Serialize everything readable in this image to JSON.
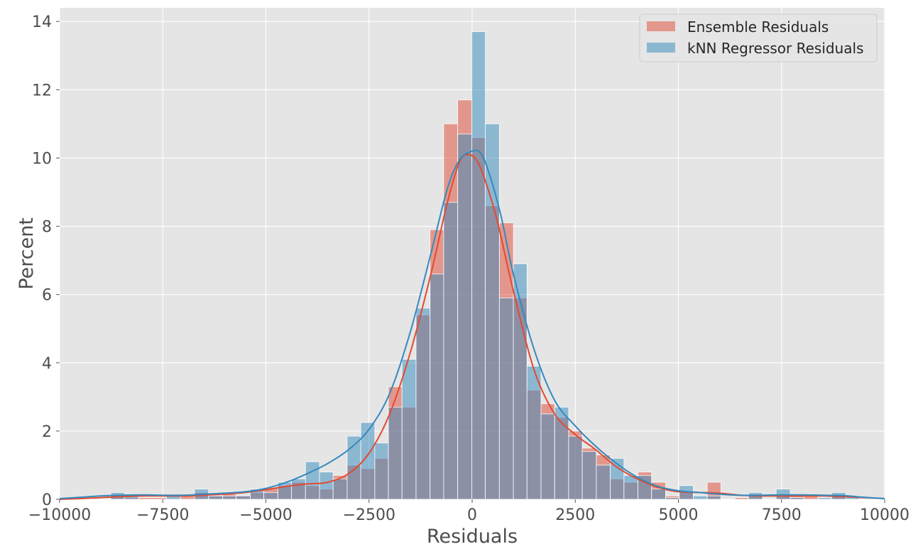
{
  "chart_data": {
    "type": "histogram",
    "xlabel": "Residuals",
    "ylabel": "Percent",
    "xlim": [
      -10000,
      10000
    ],
    "ylim": [
      0,
      14.4
    ],
    "xticks": [
      -10000,
      -7500,
      -5000,
      -2500,
      0,
      2500,
      5000,
      7500,
      10000
    ],
    "xtick_labels": [
      "−10000",
      "−7500",
      "−5000",
      "−2500",
      "0",
      "2500",
      "5000",
      "7500",
      "10000"
    ],
    "yticks": [
      0,
      2,
      4,
      6,
      8,
      10,
      12,
      14
    ],
    "ytick_labels": [
      "0",
      "2",
      "4",
      "6",
      "8",
      "10",
      "12",
      "14"
    ],
    "grid": true,
    "legend_position": "top-right",
    "style": {
      "background": "#e5e5e5",
      "grid_color": "#ffffff",
      "series_colors": [
        "#e24a33",
        "#348abd"
      ]
    },
    "series": [
      {
        "name": "Ensemble Residuals",
        "color": "#e24a33",
        "bins": [
          [
            -8760,
            -8430,
            0.1
          ],
          [
            -8430,
            -7410,
            0.05
          ],
          [
            -7070,
            -6730,
            0.1
          ],
          [
            -6730,
            -6390,
            0.2
          ],
          [
            -6390,
            -6050,
            0.1
          ],
          [
            -6050,
            -5720,
            0.15
          ],
          [
            -5720,
            -5380,
            0.1
          ],
          [
            -5380,
            -5050,
            0.2
          ],
          [
            -5050,
            -4710,
            0.35
          ],
          [
            -4710,
            -4380,
            0.4
          ],
          [
            -4380,
            -4040,
            0.5
          ],
          [
            -4040,
            -3700,
            0.4
          ],
          [
            -3700,
            -3370,
            0.3
          ],
          [
            -3370,
            -3030,
            0.7
          ],
          [
            -3030,
            -2700,
            1.0
          ],
          [
            -2700,
            -2360,
            0.9
          ],
          [
            -2360,
            -2030,
            1.2
          ],
          [
            -2030,
            -1700,
            3.3
          ],
          [
            -1700,
            -1360,
            2.7
          ],
          [
            -1360,
            -1020,
            5.4
          ],
          [
            -1020,
            -690,
            7.9
          ],
          [
            -690,
            -350,
            11.0
          ],
          [
            -350,
            -10,
            11.7
          ],
          [
            -10,
            320,
            10.6
          ],
          [
            320,
            660,
            8.6
          ],
          [
            660,
            1000,
            8.1
          ],
          [
            1000,
            1330,
            5.9
          ],
          [
            1330,
            1670,
            3.2
          ],
          [
            1670,
            2000,
            2.8
          ],
          [
            2000,
            2340,
            2.4
          ],
          [
            2340,
            2670,
            2.0
          ],
          [
            2670,
            3010,
            1.5
          ],
          [
            3010,
            3350,
            1.3
          ],
          [
            3350,
            3680,
            0.6
          ],
          [
            3680,
            4020,
            0.5
          ],
          [
            4020,
            4350,
            0.8
          ],
          [
            4350,
            4690,
            0.5
          ],
          [
            4690,
            5020,
            0.1
          ],
          [
            5020,
            5360,
            0.2
          ],
          [
            5700,
            6030,
            0.5
          ],
          [
            6370,
            6700,
            0.05
          ],
          [
            6700,
            7040,
            0.15
          ],
          [
            7370,
            7710,
            0.1
          ],
          [
            7710,
            8050,
            0.1
          ],
          [
            8050,
            8380,
            0.1
          ],
          [
            8720,
            9060,
            0.1
          ]
        ],
        "kde": [
          [
            -10000,
            0.0
          ],
          [
            -9500,
            0.02
          ],
          [
            -9000,
            0.05
          ],
          [
            -8500,
            0.08
          ],
          [
            -8000,
            0.1
          ],
          [
            -7500,
            0.1
          ],
          [
            -7000,
            0.1
          ],
          [
            -6500,
            0.12
          ],
          [
            -6000,
            0.15
          ],
          [
            -5500,
            0.2
          ],
          [
            -5000,
            0.28
          ],
          [
            -4500,
            0.38
          ],
          [
            -4000,
            0.45
          ],
          [
            -3500,
            0.5
          ],
          [
            -3000,
            0.75
          ],
          [
            -2500,
            1.35
          ],
          [
            -2000,
            2.5
          ],
          [
            -1500,
            4.3
          ],
          [
            -1000,
            6.6
          ],
          [
            -600,
            8.7
          ],
          [
            -300,
            9.9
          ],
          [
            -100,
            10.1
          ],
          [
            100,
            9.95
          ],
          [
            300,
            9.4
          ],
          [
            600,
            8.2
          ],
          [
            1000,
            6.1
          ],
          [
            1500,
            3.8
          ],
          [
            2000,
            2.5
          ],
          [
            2500,
            1.9
          ],
          [
            3000,
            1.45
          ],
          [
            3500,
            0.95
          ],
          [
            4000,
            0.6
          ],
          [
            4500,
            0.35
          ],
          [
            5000,
            0.22
          ],
          [
            5500,
            0.2
          ],
          [
            6000,
            0.18
          ],
          [
            6500,
            0.12
          ],
          [
            7000,
            0.1
          ],
          [
            7500,
            0.1
          ],
          [
            8000,
            0.1
          ],
          [
            8500,
            0.1
          ],
          [
            9000,
            0.08
          ],
          [
            9500,
            0.05
          ],
          [
            10000,
            0.02
          ]
        ]
      },
      {
        "name": "kNN Regressor Residuals",
        "color": "#348abd",
        "bins": [
          [
            -8760,
            -8430,
            0.2
          ],
          [
            -8430,
            -8090,
            0.1
          ],
          [
            -7410,
            -7070,
            0.1
          ],
          [
            -6730,
            -6390,
            0.3
          ],
          [
            -6390,
            -6050,
            0.1
          ],
          [
            -6050,
            -5720,
            0.1
          ],
          [
            -5720,
            -5380,
            0.1
          ],
          [
            -5380,
            -5050,
            0.3
          ],
          [
            -5050,
            -4710,
            0.2
          ],
          [
            -4710,
            -4380,
            0.5
          ],
          [
            -4380,
            -4040,
            0.6
          ],
          [
            -4040,
            -3700,
            1.1
          ],
          [
            -3700,
            -3370,
            0.8
          ],
          [
            -3370,
            -3030,
            0.6
          ],
          [
            -3030,
            -2700,
            1.85
          ],
          [
            -2700,
            -2360,
            2.25
          ],
          [
            -2360,
            -2030,
            1.65
          ],
          [
            -2030,
            -1700,
            2.7
          ],
          [
            -1700,
            -1360,
            4.1
          ],
          [
            -1360,
            -1020,
            5.6
          ],
          [
            -1020,
            -690,
            6.6
          ],
          [
            -690,
            -350,
            8.7
          ],
          [
            -350,
            -10,
            10.7
          ],
          [
            -10,
            320,
            13.7
          ],
          [
            320,
            660,
            11.0
          ],
          [
            660,
            1000,
            5.9
          ],
          [
            1000,
            1330,
            6.9
          ],
          [
            1330,
            1670,
            3.9
          ],
          [
            1670,
            2000,
            2.5
          ],
          [
            2000,
            2340,
            2.7
          ],
          [
            2340,
            2670,
            1.85
          ],
          [
            2670,
            3010,
            1.4
          ],
          [
            3010,
            3350,
            1.0
          ],
          [
            3350,
            3680,
            1.2
          ],
          [
            3680,
            4020,
            0.7
          ],
          [
            4020,
            4350,
            0.7
          ],
          [
            4350,
            4690,
            0.3
          ],
          [
            4690,
            5020,
            0.05
          ],
          [
            5020,
            5360,
            0.4
          ],
          [
            5360,
            5700,
            0.1
          ],
          [
            5700,
            6030,
            0.1
          ],
          [
            6700,
            7040,
            0.2
          ],
          [
            7370,
            7710,
            0.3
          ],
          [
            7710,
            8050,
            0.05
          ],
          [
            8380,
            8720,
            0.05
          ],
          [
            8720,
            9060,
            0.2
          ],
          [
            9060,
            9390,
            0.1
          ]
        ],
        "kde": [
          [
            -10000,
            0.02
          ],
          [
            -9500,
            0.06
          ],
          [
            -9000,
            0.1
          ],
          [
            -8500,
            0.12
          ],
          [
            -8000,
            0.13
          ],
          [
            -7500,
            0.12
          ],
          [
            -7000,
            0.12
          ],
          [
            -6500,
            0.15
          ],
          [
            -6000,
            0.18
          ],
          [
            -5500,
            0.22
          ],
          [
            -5000,
            0.32
          ],
          [
            -4500,
            0.5
          ],
          [
            -4000,
            0.75
          ],
          [
            -3500,
            1.05
          ],
          [
            -3000,
            1.45
          ],
          [
            -2500,
            2.05
          ],
          [
            -2000,
            3.1
          ],
          [
            -1500,
            4.9
          ],
          [
            -1000,
            7.2
          ],
          [
            -600,
            9.1
          ],
          [
            -300,
            9.95
          ],
          [
            0,
            10.2
          ],
          [
            200,
            10.15
          ],
          [
            400,
            9.6
          ],
          [
            700,
            8.3
          ],
          [
            1000,
            6.6
          ],
          [
            1500,
            4.4
          ],
          [
            2000,
            2.9
          ],
          [
            2500,
            2.15
          ],
          [
            3000,
            1.55
          ],
          [
            3500,
            1.05
          ],
          [
            4000,
            0.65
          ],
          [
            4500,
            0.38
          ],
          [
            5000,
            0.25
          ],
          [
            5500,
            0.2
          ],
          [
            6000,
            0.15
          ],
          [
            6500,
            0.12
          ],
          [
            7000,
            0.12
          ],
          [
            7500,
            0.13
          ],
          [
            8000,
            0.13
          ],
          [
            8500,
            0.12
          ],
          [
            9000,
            0.11
          ],
          [
            9500,
            0.06
          ],
          [
            10000,
            0.02
          ]
        ]
      }
    ]
  }
}
